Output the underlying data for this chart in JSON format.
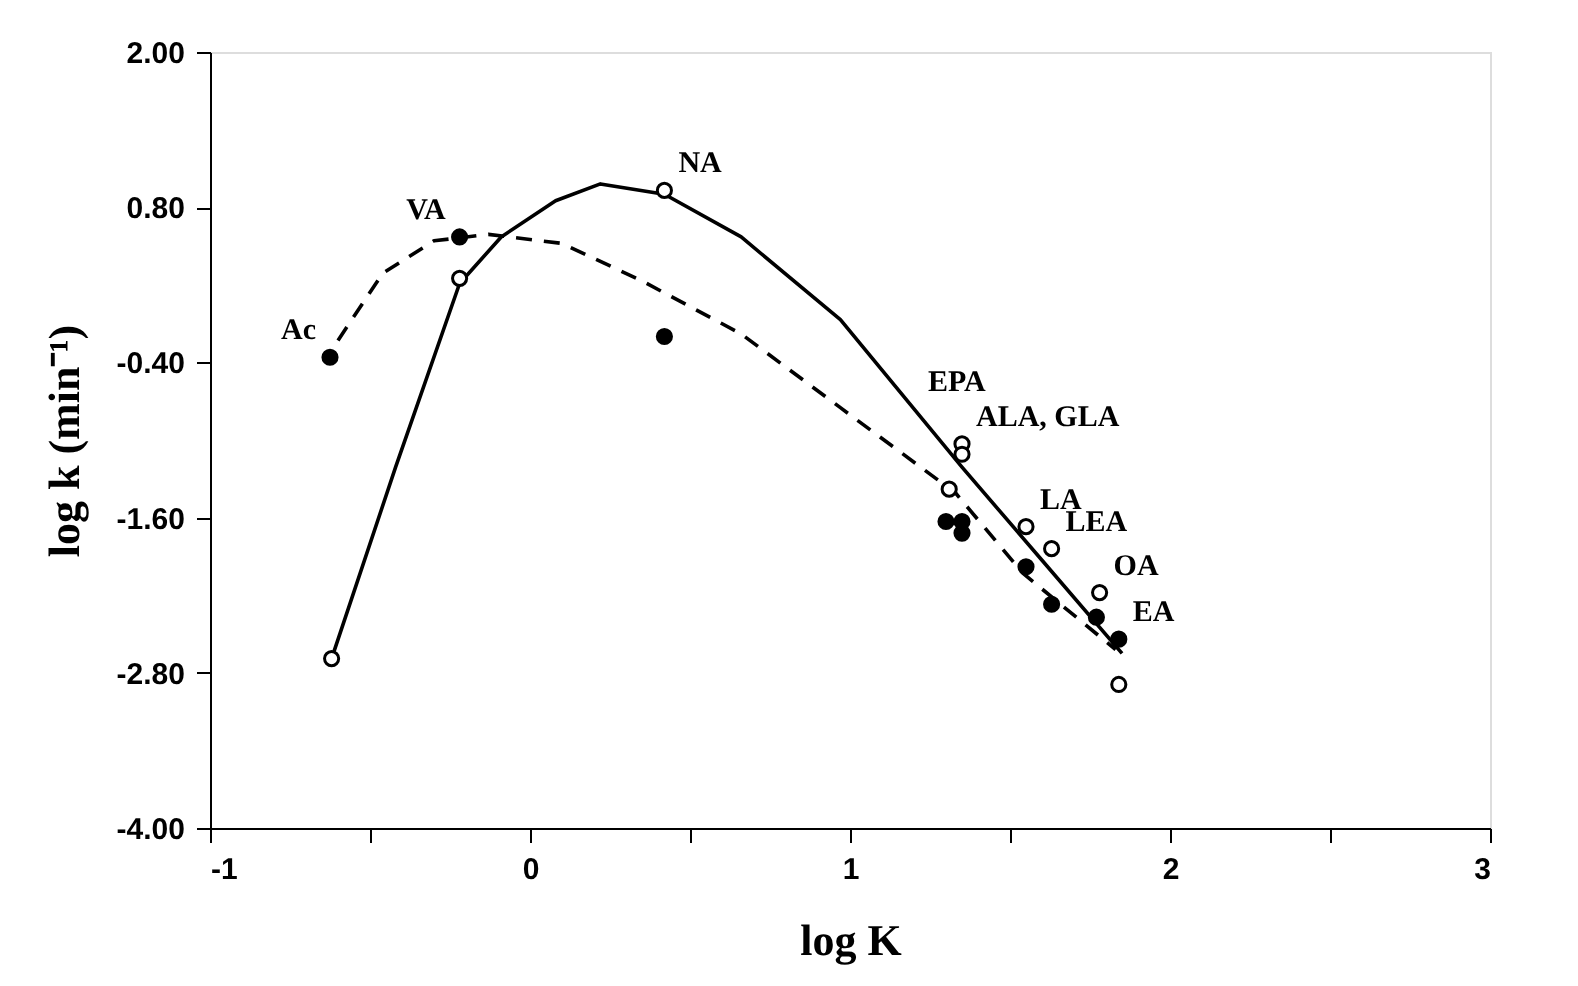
{
  "chart_data": {
    "type": "scatter",
    "xlabel": "log K",
    "ylabel": "log k (min⁻¹)",
    "xlim": [
      -1,
      3
    ],
    "xticks": [
      -1,
      {
        "value": -0.5,
        "label": null
      },
      0,
      {
        "value": 0.5,
        "label": null
      },
      1,
      {
        "value": 1.5,
        "label": null
      },
      2,
      {
        "value": 2.5,
        "label": null
      },
      3
    ],
    "ylim": [
      -4.0,
      2.0
    ],
    "yticks": [
      {
        "value": -4.0,
        "label": "-4.00"
      },
      {
        "value": -2.8,
        "label": "-2.80"
      },
      {
        "value": -1.6,
        "label": "-1.60"
      },
      {
        "value": -0.4,
        "label": "-0.40"
      },
      {
        "value": 0.8,
        "label": "0.80"
      },
      {
        "value": 2.0,
        "label": "2.00"
      }
    ],
    "grid": false,
    "series": [
      {
        "type": "line",
        "color": "#000000",
        "line_style": "solid",
        "marker": "none",
        "x": [
          -0.62,
          -0.42,
          -0.22,
          -0.09,
          0.08,
          0.22,
          0.42,
          0.66,
          0.97,
          1.35,
          1.6,
          1.85
        ],
        "values": [
          -2.69,
          -1.21,
          0.21,
          0.57,
          0.85,
          0.98,
          0.9,
          0.57,
          -0.07,
          -1.21,
          -1.93,
          -2.65
        ]
      },
      {
        "type": "line",
        "color": "#000000",
        "line_style": "dashed",
        "marker": "none",
        "x": [
          -0.6,
          -0.46,
          -0.3,
          -0.13,
          0.1,
          0.35,
          0.66,
          0.97,
          1.33,
          1.54,
          1.83
        ],
        "values": [
          -0.23,
          0.29,
          0.54,
          0.59,
          0.52,
          0.23,
          -0.18,
          -0.75,
          -1.41,
          -2.03,
          -2.62
        ]
      },
      {
        "color": "#ffffff",
        "marker": "circle",
        "x": [
          -0.62,
          -0.22,
          0.42,
          1.35,
          1.35,
          1.31,
          1.55,
          1.63,
          1.78,
          1.84
        ],
        "values": [
          -2.69,
          0.25,
          0.93,
          -1.03,
          -1.11,
          -1.38,
          -1.67,
          -1.84,
          -2.18,
          -2.89
        ]
      },
      {
        "color": "#000000",
        "marker": "circle",
        "x": [
          -0.625,
          -0.22,
          0.42,
          1.3,
          1.35,
          1.35,
          1.55,
          1.63,
          1.77,
          1.84
        ],
        "values": [
          -0.36,
          0.57,
          -0.2,
          -1.63,
          -1.72,
          -1.63,
          -1.98,
          -2.27,
          -2.37,
          -2.54
        ]
      }
    ],
    "annotations": [
      {
        "text": "Ac",
        "x": -0.625,
        "y": -0.36
      },
      {
        "text": "VA",
        "x": -0.22,
        "y": 0.57
      },
      {
        "text": "NA",
        "x": 0.42,
        "y": 0.93
      },
      {
        "text": "EPA",
        "x": 1.2,
        "y": -0.76
      },
      {
        "text": "ALA, GLA",
        "x": 1.35,
        "y": -1.03
      },
      {
        "text": "LA",
        "x": 1.55,
        "y": -1.67
      },
      {
        "text": "LEA",
        "x": 1.63,
        "y": -1.84
      },
      {
        "text": "OA",
        "x": 1.78,
        "y": -2.18
      },
      {
        "text": "EA",
        "x": 1.84,
        "y": -2.54
      }
    ]
  }
}
